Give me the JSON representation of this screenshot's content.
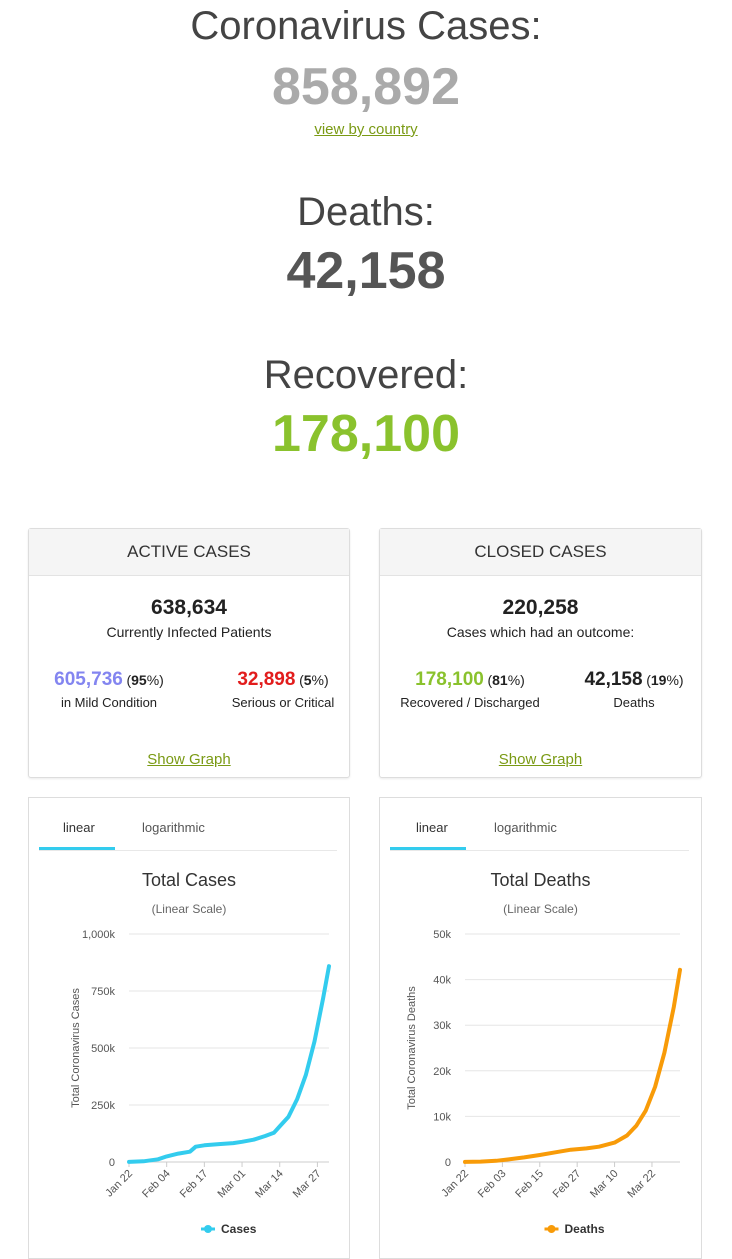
{
  "header": {
    "cases_label": "Coronavirus Cases:",
    "cases_value": "858,892",
    "view_by_country": "view by country",
    "deaths_label": "Deaths:",
    "deaths_value": "42,158",
    "recovered_label": "Recovered:",
    "recovered_value": "178,100"
  },
  "active": {
    "title": "ACTIVE CASES",
    "total": "638,634",
    "total_caption": "Currently Infected Patients",
    "mild_value": "605,736",
    "mild_pct_open": "(",
    "mild_pct": "95",
    "mild_pct_close": "%)",
    "mild_caption": "in Mild Condition",
    "serious_value": "32,898",
    "serious_pct_open": "(",
    "serious_pct": "5",
    "serious_pct_close": "%)",
    "serious_caption": "Serious or Critical",
    "show_graph": "Show Graph"
  },
  "closed": {
    "title": "CLOSED CASES",
    "total": "220,258",
    "total_caption": "Cases which had an outcome:",
    "rec_value": "178,100",
    "rec_pct_open": "(",
    "rec_pct": "81",
    "rec_pct_close": "%)",
    "rec_caption": "Recovered / Discharged",
    "deaths_value": "42,158",
    "deaths_pct_open": "(",
    "deaths_pct": "19",
    "deaths_pct_close": "%)",
    "deaths_caption": "Deaths",
    "show_graph": "Show Graph"
  },
  "colors": {
    "mild": "#8385f0",
    "serious": "#e21c1c",
    "recovered": "#8ac22d",
    "cases_line": "#33ccee",
    "deaths_line": "#f89b08"
  },
  "tabs": {
    "linear": "linear",
    "logarithmic": "logarithmic"
  },
  "chart_data": [
    {
      "type": "line",
      "title": "Total Cases",
      "subtitle": "(Linear Scale)",
      "xlabel": "",
      "ylabel": "Total Coronavirus Cases",
      "ylim": [
        0,
        1000000
      ],
      "yticks": [
        "0",
        "250k",
        "500k",
        "750k",
        "1,000k"
      ],
      "xticks": [
        "Jan 22",
        "Feb 04",
        "Feb 17",
        "Mar 01",
        "Mar 14",
        "Mar 27"
      ],
      "grid": true,
      "legend": "bottom",
      "series": [
        {
          "name": "Cases",
          "x": [
            "Jan 22",
            "Jan 27",
            "Feb 01",
            "Feb 04",
            "Feb 08",
            "Feb 12",
            "Feb 14",
            "Feb 17",
            "Feb 22",
            "Feb 27",
            "Mar 01",
            "Mar 05",
            "Mar 09",
            "Mar 12",
            "Mar 14",
            "Mar 17",
            "Mar 20",
            "Mar 23",
            "Mar 26",
            "Mar 29",
            "Mar 31"
          ],
          "values": [
            580,
            2900,
            12000,
            24500,
            37000,
            45000,
            67000,
            73300,
            78500,
            82800,
            88400,
            97900,
            114000,
            128000,
            156000,
            198000,
            275000,
            381000,
            529000,
            720000,
            858892
          ]
        }
      ]
    },
    {
      "type": "line",
      "title": "Total Deaths",
      "subtitle": "(Linear Scale)",
      "xlabel": "",
      "ylabel": "Total Coronavirus Deaths",
      "ylim": [
        0,
        50000
      ],
      "yticks": [
        "0",
        "10k",
        "20k",
        "30k",
        "40k",
        "50k"
      ],
      "xticks": [
        "Jan 22",
        "Feb 03",
        "Feb 15",
        "Feb 27",
        "Mar 10",
        "Mar 22"
      ],
      "grid": true,
      "legend": "bottom",
      "series": [
        {
          "name": "Deaths",
          "x": [
            "Jan 22",
            "Jan 27",
            "Feb 01",
            "Feb 05",
            "Feb 10",
            "Feb 15",
            "Feb 20",
            "Feb 25",
            "Mar 01",
            "Mar 05",
            "Mar 10",
            "Mar 14",
            "Mar 17",
            "Mar 20",
            "Mar 23",
            "Mar 26",
            "Mar 29",
            "Mar 31"
          ],
          "values": [
            17,
            82,
            259,
            565,
            1018,
            1526,
            2130,
            2708,
            2977,
            3348,
            4262,
            5819,
            7974,
            11252,
            16500,
            23970,
            34000,
            42158
          ]
        }
      ]
    }
  ]
}
